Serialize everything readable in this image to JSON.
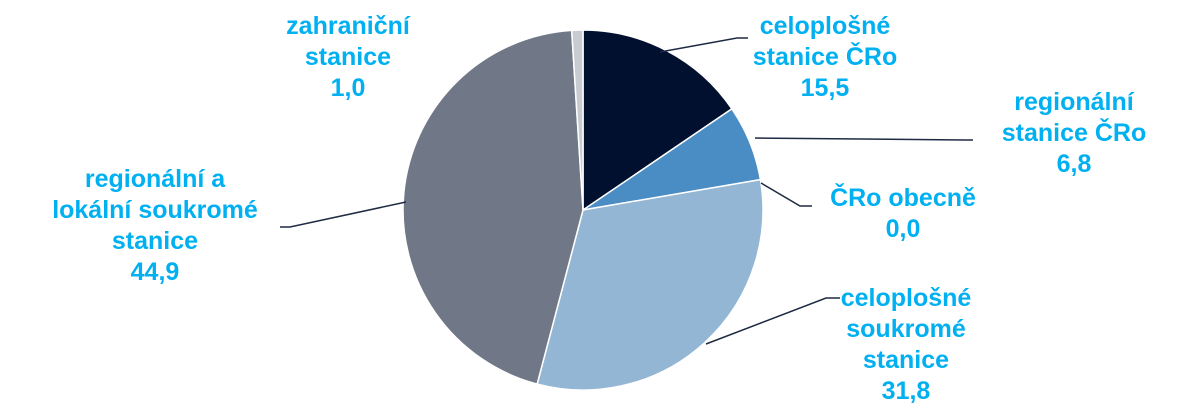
{
  "chart_data": {
    "type": "pie",
    "title": "",
    "unit": "",
    "start_angle_deg": 0,
    "direction": "clockwise",
    "colors": {
      "label": "#00B0F0",
      "leader": "#1F2A44",
      "slice_border": "#FFFFFF"
    },
    "slices": [
      {
        "key": "celoplosne-cro",
        "label_lines": [
          "celoplošné",
          "stanice ČRo"
        ],
        "value_text": "15,5",
        "value": 15.5,
        "color": "#00102E"
      },
      {
        "key": "regionalni-cro",
        "label_lines": [
          "regionální",
          "stanice ČRo"
        ],
        "value_text": "6,8",
        "value": 6.8,
        "color": "#4A8CC4"
      },
      {
        "key": "cro-obecne",
        "label_lines": [
          "ČRo obecně"
        ],
        "value_text": "0,0",
        "value": 0.0,
        "color": "#4A8CC4"
      },
      {
        "key": "celoplosne-soukrome",
        "label_lines": [
          "celoplošné",
          "soukromé",
          "stanice"
        ],
        "value_text": "31,8",
        "value": 31.8,
        "color": "#93B6D4"
      },
      {
        "key": "regionalni-lokalni",
        "label_lines": [
          "regionální a",
          "lokální soukromé",
          "stanice"
        ],
        "value_text": "44,9",
        "value": 44.9,
        "color": "#707888"
      },
      {
        "key": "zahranicni",
        "label_lines": [
          "zahraniční",
          "stanice"
        ],
        "value_text": "1,0",
        "value": 1.0,
        "color": "#C8CBD0"
      }
    ]
  }
}
